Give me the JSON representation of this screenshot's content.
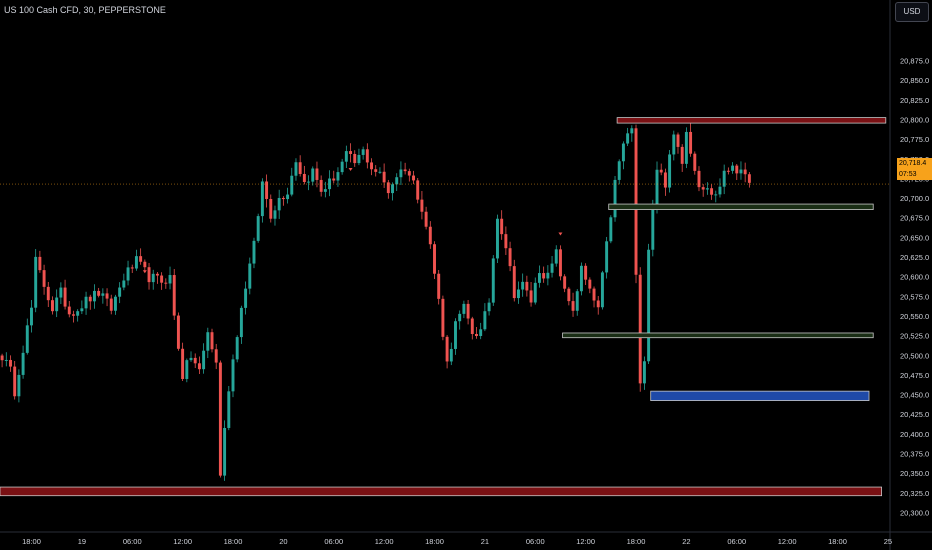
{
  "header": {
    "title": "US 100 Cash CFD, 30, PEPPERSTONE"
  },
  "price_scale": {
    "currency": "USD"
  },
  "last_price": {
    "value": "20,718.4",
    "countdown": "07:53",
    "level": 20718.4
  },
  "colors": {
    "background": "#000000",
    "up": "#26a69a",
    "down": "#ef5350",
    "axis_text": "#d1d4dc",
    "price_tag": "#f7a21b",
    "zone_supply": "#7a1114",
    "zone_demand": "#1a2e15",
    "zone_blue": "#1f4aa8"
  },
  "chart_data": {
    "type": "candlestick",
    "title": "US 100 Cash CFD, 30, PEPPERSTONE",
    "ylim": [
      20290,
      20900
    ],
    "y_ticks": [
      {
        "value": 20300,
        "label": "20,300.0"
      },
      {
        "value": 20325,
        "label": "20,325.0"
      },
      {
        "value": 20350,
        "label": "20,350.0"
      },
      {
        "value": 20375,
        "label": "20,375.0"
      },
      {
        "value": 20400,
        "label": "20,400.0"
      },
      {
        "value": 20425,
        "label": "20,425.0"
      },
      {
        "value": 20450,
        "label": "20,450.0"
      },
      {
        "value": 20475,
        "label": "20,475.0"
      },
      {
        "value": 20500,
        "label": "20,500.0"
      },
      {
        "value": 20525,
        "label": "20,525.0"
      },
      {
        "value": 20550,
        "label": "20,550.0"
      },
      {
        "value": 20575,
        "label": "20,575.0"
      },
      {
        "value": 20600,
        "label": "20,600.0"
      },
      {
        "value": 20625,
        "label": "20,625.0"
      },
      {
        "value": 20650,
        "label": "20,650.0"
      },
      {
        "value": 20675,
        "label": "20,675.0"
      },
      {
        "value": 20700,
        "label": "20,700.0"
      },
      {
        "value": 20725,
        "label": "20,725.0"
      },
      {
        "value": 20750,
        "label": "20,750.0"
      },
      {
        "value": 20775,
        "label": "20,775.0"
      },
      {
        "value": 20800,
        "label": "20,800.0"
      },
      {
        "value": 20825,
        "label": "20,825.0"
      },
      {
        "value": 20850,
        "label": "20,850.0"
      },
      {
        "value": 20875,
        "label": "20,875.0"
      }
    ],
    "x_ticks": [
      {
        "index": 7,
        "label": "18:00"
      },
      {
        "index": 19,
        "label": "19"
      },
      {
        "index": 31,
        "label": "06:00"
      },
      {
        "index": 43,
        "label": "12:00"
      },
      {
        "index": 55,
        "label": "18:00"
      },
      {
        "index": 67,
        "label": "20"
      },
      {
        "index": 79,
        "label": "06:00"
      },
      {
        "index": 91,
        "label": "12:00"
      },
      {
        "index": 103,
        "label": "18:00"
      },
      {
        "index": 115,
        "label": "21"
      },
      {
        "index": 127,
        "label": "06:00"
      },
      {
        "index": 139,
        "label": "12:00"
      },
      {
        "index": 151,
        "label": "18:00"
      },
      {
        "index": 163,
        "label": "22"
      },
      {
        "index": 175,
        "label": "06:00"
      },
      {
        "index": 187,
        "label": "12:00"
      },
      {
        "index": 199,
        "label": "18:00"
      },
      {
        "index": 211,
        "label": "25"
      }
    ],
    "waypoints": [
      [
        0,
        20500
      ],
      [
        2,
        20480
      ],
      [
        3,
        20455
      ],
      [
        5,
        20510
      ],
      [
        7,
        20560
      ],
      [
        8,
        20620
      ],
      [
        10,
        20590
      ],
      [
        12,
        20560
      ],
      [
        14,
        20580
      ],
      [
        16,
        20555
      ],
      [
        18,
        20560
      ],
      [
        20,
        20570
      ],
      [
        23,
        20580
      ],
      [
        26,
        20560
      ],
      [
        29,
        20600
      ],
      [
        32,
        20620
      ],
      [
        35,
        20600
      ],
      [
        38,
        20595
      ],
      [
        40,
        20600
      ],
      [
        41,
        20550
      ],
      [
        43,
        20475
      ],
      [
        45,
        20500
      ],
      [
        47,
        20480
      ],
      [
        49,
        20530
      ],
      [
        51,
        20490
      ],
      [
        52,
        20350
      ],
      [
        54,
        20460
      ],
      [
        56,
        20530
      ],
      [
        58,
        20590
      ],
      [
        60,
        20640
      ],
      [
        62,
        20720
      ],
      [
        64,
        20680
      ],
      [
        66,
        20700
      ],
      [
        68,
        20710
      ],
      [
        70,
        20750
      ],
      [
        72,
        20720
      ],
      [
        74,
        20735
      ],
      [
        76,
        20710
      ],
      [
        78,
        20720
      ],
      [
        80,
        20735
      ],
      [
        82,
        20755
      ],
      [
        84,
        20745
      ],
      [
        86,
        20760
      ],
      [
        88,
        20740
      ],
      [
        90,
        20730
      ],
      [
        92,
        20710
      ],
      [
        94,
        20730
      ],
      [
        96,
        20740
      ],
      [
        98,
        20720
      ],
      [
        100,
        20690
      ],
      [
        102,
        20640
      ],
      [
        104,
        20570
      ],
      [
        106,
        20490
      ],
      [
        108,
        20540
      ],
      [
        110,
        20560
      ],
      [
        112,
        20530
      ],
      [
        114,
        20530
      ],
      [
        116,
        20570
      ],
      [
        118,
        20680
      ],
      [
        120,
        20640
      ],
      [
        122,
        20580
      ],
      [
        124,
        20590
      ],
      [
        126,
        20570
      ],
      [
        128,
        20610
      ],
      [
        130,
        20600
      ],
      [
        132,
        20630
      ],
      [
        134,
        20580
      ],
      [
        136,
        20560
      ],
      [
        138,
        20610
      ],
      [
        140,
        20580
      ],
      [
        142,
        20560
      ],
      [
        144,
        20640
      ],
      [
        146,
        20720
      ],
      [
        148,
        20770
      ],
      [
        150,
        20790
      ],
      [
        151,
        20600
      ],
      [
        152,
        20460
      ],
      [
        153,
        20500
      ],
      [
        154,
        20640
      ],
      [
        155,
        20690
      ],
      [
        156,
        20740
      ],
      [
        158,
        20720
      ],
      [
        160,
        20780
      ],
      [
        162,
        20750
      ],
      [
        163,
        20790
      ],
      [
        164,
        20760
      ],
      [
        166,
        20720
      ],
      [
        168,
        20710
      ],
      [
        170,
        20705
      ],
      [
        172,
        20730
      ],
      [
        174,
        20745
      ],
      [
        176,
        20730
      ],
      [
        178,
        20720
      ]
    ],
    "zones": [
      {
        "x_start": 147,
        "x_end": 211,
        "y_top": 20803,
        "y_bottom": 20796,
        "kind": "supply"
      },
      {
        "x_start": 145,
        "x_end": 208,
        "y_top": 20693,
        "y_bottom": 20686,
        "kind": "demand"
      },
      {
        "x_start": 134,
        "x_end": 208,
        "y_top": 20529,
        "y_bottom": 20523,
        "kind": "demand"
      },
      {
        "x_start": 155,
        "x_end": 207,
        "y_top": 20455,
        "y_bottom": 20443,
        "kind": "blue"
      },
      {
        "x_start": 0,
        "x_end": 210,
        "y_top": 20333,
        "y_bottom": 20322,
        "kind": "supply"
      }
    ],
    "markers": [
      {
        "index": 34,
        "y": 20605
      },
      {
        "index": 83,
        "y": 20735
      },
      {
        "index": 133,
        "y": 20653
      }
    ],
    "grid": false,
    "last_price_line": 20718.4
  }
}
